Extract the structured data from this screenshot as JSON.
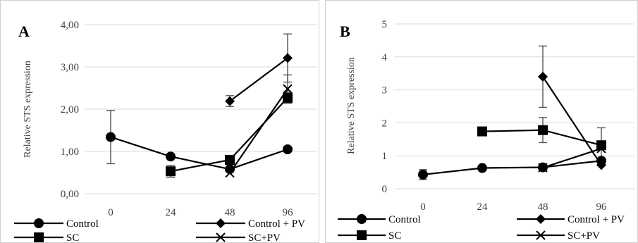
{
  "chart_data": [
    {
      "type": "line",
      "panel": "A",
      "title": "",
      "xlabel": "",
      "ylabel": "Relative STS expression",
      "categories": [
        "0",
        "24",
        "48",
        "96"
      ],
      "yticks": [
        "0,00",
        "1,00",
        "2,00",
        "3,00",
        "4,00"
      ],
      "ylim": [
        0,
        4
      ],
      "grid": true,
      "legend": "bottom",
      "series": [
        {
          "name": "Control",
          "marker": "circle",
          "values": [
            1.34,
            0.88,
            0.58,
            1.05
          ],
          "errors": [
            0.63,
            0.0,
            0.0,
            0.0
          ]
        },
        {
          "name": "Control + PV",
          "marker": "diamond",
          "values": [
            null,
            null,
            2.19,
            3.21
          ],
          "errors": [
            0,
            0,
            0.13,
            0.57
          ]
        },
        {
          "name": "SC",
          "marker": "square",
          "values": [
            null,
            0.53,
            0.8,
            2.27
          ],
          "errors": [
            0,
            0.14,
            0.0,
            0.13
          ]
        },
        {
          "name": "SC+PV",
          "marker": "x",
          "values": [
            null,
            null,
            0.49,
            2.48
          ],
          "errors": [
            0,
            0,
            0.0,
            0.33
          ]
        }
      ]
    },
    {
      "type": "line",
      "panel": "B",
      "title": "",
      "xlabel": "",
      "ylabel": "Relative STS expression",
      "categories": [
        "0",
        "24",
        "48",
        "96"
      ],
      "yticks": [
        "0",
        "1",
        "2",
        "3",
        "4",
        "5"
      ],
      "ylim": [
        0,
        5
      ],
      "grid": true,
      "legend": "bottom",
      "series": [
        {
          "name": "Control",
          "marker": "circle",
          "values": [
            0.43,
            0.63,
            0.65,
            0.85
          ],
          "errors": [
            0.15,
            0.0,
            0.0,
            0.0
          ]
        },
        {
          "name": "Control + PV",
          "marker": "diamond",
          "values": [
            null,
            null,
            3.4,
            0.72
          ],
          "errors": [
            0,
            0,
            0.93,
            0.0
          ]
        },
        {
          "name": "SC",
          "marker": "square",
          "values": [
            null,
            1.74,
            1.78,
            1.32
          ],
          "errors": [
            0,
            0.0,
            0.38,
            0.53
          ]
        },
        {
          "name": "SC+PV",
          "marker": "x",
          "values": [
            null,
            null,
            0.64,
            1.22
          ],
          "errors": [
            0,
            0,
            0.0,
            0.0
          ]
        }
      ]
    }
  ]
}
